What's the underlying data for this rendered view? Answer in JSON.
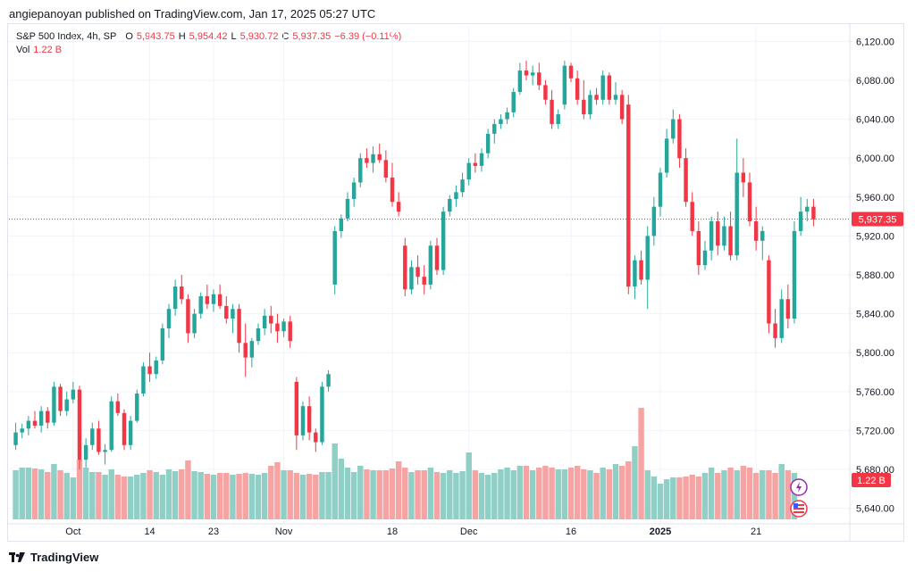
{
  "header": {
    "published_line": "angiepanoyan published on TradingView.com, Jan 17, 2025 05:27 UTC"
  },
  "legend": {
    "symbol": "S&P 500 Index, 4h, SP",
    "o_label": "O",
    "o_value": "5,943.75",
    "h_label": "H",
    "h_value": "5,954.42",
    "l_label": "L",
    "l_value": "5,930.72",
    "c_label": "C",
    "c_value": "5,937.35",
    "change": "−6.39 (−0.11%)",
    "vol_label": "Vol",
    "vol_value": "1.22 B"
  },
  "colors": {
    "up": "#26a69a",
    "down": "#f23645",
    "vol_up": "#8fcfc6",
    "vol_down": "#f5a3a3",
    "price_line": "#f23645",
    "grid": "#f0f3fa",
    "axis_text": "#131722"
  },
  "footer": {
    "brand": "TradingView"
  },
  "icons": [
    "tradingview-logo-icon",
    "lightning-event-icon",
    "us-flag-icon"
  ],
  "chart_data": {
    "type": "candlestick",
    "symbol": "S&P 500 Index",
    "interval": "4h",
    "ylim": [
      5625,
      6135
    ],
    "y_ticks": [
      "6,120.00",
      "6,080.00",
      "6,040.00",
      "6,000.00",
      "5,960.00",
      "5,920.00",
      "5,880.00",
      "5,840.00",
      "5,800.00",
      "5,760.00",
      "5,720.00",
      "5,680.00",
      "5,640.00"
    ],
    "y_tick_values": [
      6120,
      6080,
      6040,
      6000,
      5960,
      5920,
      5880,
      5840,
      5800,
      5760,
      5720,
      5680,
      5640
    ],
    "x_ticks": [
      {
        "label": "Oct",
        "index": 9,
        "bold": false
      },
      {
        "label": "14",
        "index": 21,
        "bold": false
      },
      {
        "label": "23",
        "index": 31,
        "bold": false
      },
      {
        "label": "Nov",
        "index": 42,
        "bold": false
      },
      {
        "label": "18",
        "index": 59,
        "bold": false
      },
      {
        "label": "Dec",
        "index": 71,
        "bold": false
      },
      {
        "label": "16",
        "index": 87,
        "bold": false
      },
      {
        "label": "2025",
        "index": 101,
        "bold": true
      },
      {
        "label": "21",
        "index": 116,
        "bold": false
      }
    ],
    "last_price": 5937.35,
    "last_price_label": "5,937.35",
    "last_volume_label": "1.22 B",
    "candles": [
      [
        5705,
        5728,
        5700,
        5718
      ],
      [
        5718,
        5727,
        5712,
        5722
      ],
      [
        5722,
        5735,
        5715,
        5730
      ],
      [
        5730,
        5740,
        5722,
        5725
      ],
      [
        5725,
        5745,
        5718,
        5740
      ],
      [
        5740,
        5744,
        5722,
        5728
      ],
      [
        5728,
        5770,
        5725,
        5765
      ],
      [
        5765,
        5768,
        5735,
        5740
      ],
      [
        5740,
        5760,
        5735,
        5752
      ],
      [
        5752,
        5770,
        5748,
        5762
      ],
      [
        5762,
        5766,
        5680,
        5690
      ],
      [
        5690,
        5712,
        5682,
        5705
      ],
      [
        5705,
        5728,
        5700,
        5722
      ],
      [
        5722,
        5730,
        5695,
        5698
      ],
      [
        5698,
        5706,
        5685,
        5700
      ],
      [
        5700,
        5755,
        5698,
        5750
      ],
      [
        5750,
        5758,
        5735,
        5738
      ],
      [
        5738,
        5742,
        5700,
        5705
      ],
      [
        5705,
        5735,
        5700,
        5730
      ],
      [
        5730,
        5762,
        5728,
        5758
      ],
      [
        5758,
        5790,
        5755,
        5786
      ],
      [
        5786,
        5800,
        5770,
        5778
      ],
      [
        5778,
        5796,
        5773,
        5792
      ],
      [
        5792,
        5830,
        5788,
        5825
      ],
      [
        5825,
        5850,
        5815,
        5845
      ],
      [
        5845,
        5875,
        5838,
        5868
      ],
      [
        5868,
        5880,
        5850,
        5855
      ],
      [
        5855,
        5860,
        5810,
        5820
      ],
      [
        5820,
        5845,
        5815,
        5840
      ],
      [
        5840,
        5862,
        5835,
        5858
      ],
      [
        5858,
        5870,
        5845,
        5850
      ],
      [
        5850,
        5865,
        5842,
        5860
      ],
      [
        5860,
        5870,
        5845,
        5848
      ],
      [
        5848,
        5858,
        5830,
        5835
      ],
      [
        5835,
        5850,
        5820,
        5845
      ],
      [
        5845,
        5850,
        5800,
        5810
      ],
      [
        5810,
        5830,
        5775,
        5795
      ],
      [
        5795,
        5815,
        5785,
        5812
      ],
      [
        5812,
        5830,
        5808,
        5825
      ],
      [
        5825,
        5845,
        5818,
        5838
      ],
      [
        5838,
        5848,
        5820,
        5830
      ],
      [
        5830,
        5840,
        5810,
        5822
      ],
      [
        5822,
        5835,
        5816,
        5832
      ],
      [
        5832,
        5838,
        5805,
        5812
      ],
      [
        5770,
        5775,
        5700,
        5715
      ],
      [
        5715,
        5750,
        5710,
        5745
      ],
      [
        5745,
        5755,
        5710,
        5718
      ],
      [
        5718,
        5722,
        5698,
        5708
      ],
      [
        5708,
        5770,
        5705,
        5765
      ],
      [
        5765,
        5782,
        5760,
        5778
      ],
      [
        5870,
        5930,
        5860,
        5925
      ],
      [
        5925,
        5942,
        5918,
        5938
      ],
      [
        5938,
        5965,
        5935,
        5958
      ],
      [
        5958,
        5980,
        5950,
        5975
      ],
      [
        5975,
        6005,
        5970,
        6000
      ],
      [
        6000,
        6010,
        5990,
        5995
      ],
      [
        5995,
        6012,
        5985,
        6004
      ],
      [
        6004,
        6015,
        5995,
        5998
      ],
      [
        5998,
        6008,
        5975,
        5980
      ],
      [
        5980,
        5995,
        5950,
        5955
      ],
      [
        5955,
        5965,
        5940,
        5945
      ],
      [
        5910,
        5918,
        5858,
        5865
      ],
      [
        5865,
        5895,
        5860,
        5888
      ],
      [
        5888,
        5900,
        5870,
        5878
      ],
      [
        5878,
        5890,
        5860,
        5870
      ],
      [
        5870,
        5915,
        5865,
        5910
      ],
      [
        5910,
        5918,
        5880,
        5885
      ],
      [
        5885,
        5950,
        5880,
        5945
      ],
      [
        5945,
        5962,
        5940,
        5958
      ],
      [
        5958,
        5972,
        5950,
        5965
      ],
      [
        5965,
        5985,
        5960,
        5978
      ],
      [
        5978,
        6000,
        5972,
        5995
      ],
      [
        5995,
        6005,
        5985,
        5992
      ],
      [
        5992,
        6010,
        5986,
        6005
      ],
      [
        6005,
        6030,
        6000,
        6025
      ],
      [
        6025,
        6040,
        6015,
        6035
      ],
      [
        6035,
        6045,
        6030,
        6040
      ],
      [
        6040,
        6052,
        6035,
        6047
      ],
      [
        6047,
        6072,
        6042,
        6068
      ],
      [
        6068,
        6098,
        6065,
        6090
      ],
      [
        6090,
        6100,
        6080,
        6085
      ],
      [
        6085,
        6095,
        6075,
        6088
      ],
      [
        6088,
        6098,
        6070,
        6075
      ],
      [
        6075,
        6080,
        6055,
        6060
      ],
      [
        6060,
        6070,
        6030,
        6035
      ],
      [
        6035,
        6050,
        6030,
        6045
      ],
      [
        6055,
        6100,
        6050,
        6095
      ],
      [
        6095,
        6098,
        6078,
        6082
      ],
      [
        6082,
        6090,
        6055,
        6060
      ],
      [
        6060,
        6080,
        6040,
        6045
      ],
      [
        6045,
        6070,
        6040,
        6065
      ],
      [
        6065,
        6072,
        6055,
        6060
      ],
      [
        6060,
        6090,
        6055,
        6085
      ],
      [
        6085,
        6088,
        6055,
        6060
      ],
      [
        6060,
        6078,
        6055,
        6065
      ],
      [
        6065,
        6070,
        6035,
        6040
      ]
    ],
    "candles_2": [
      [
        6055,
        6065,
        5860,
        5868
      ],
      [
        5868,
        5900,
        5855,
        5895
      ],
      [
        5895,
        5905,
        5870,
        5875
      ],
      [
        5875,
        5930,
        5845,
        5920
      ],
      [
        5920,
        5960,
        5910,
        5950
      ],
      [
        5950,
        5990,
        5940,
        5985
      ],
      [
        5985,
        6030,
        5980,
        6020
      ],
      [
        6020,
        6050,
        6015,
        6040
      ],
      [
        6040,
        6045,
        5990,
        6000
      ],
      [
        6000,
        6010,
        5950,
        5955
      ],
      [
        5955,
        5965,
        5920,
        5925
      ],
      [
        5925,
        5935,
        5880,
        5890
      ],
      [
        5890,
        5915,
        5885,
        5905
      ],
      [
        5905,
        5940,
        5895,
        5935
      ],
      [
        5935,
        5945,
        5900,
        5910
      ],
      [
        5910,
        5940,
        5905,
        5930
      ],
      [
        5930,
        5945,
        5895,
        5900
      ],
      [
        5900,
        6020,
        5895,
        5985
      ],
      [
        5985,
        6000,
        5960,
        5975
      ],
      [
        5975,
        5985,
        5930,
        5935
      ],
      [
        5935,
        5950,
        5905,
        5915
      ],
      [
        5915,
        5930,
        5895,
        5925
      ],
      [
        5895,
        5900,
        5820,
        5830
      ],
      [
        5830,
        5845,
        5805,
        5815
      ],
      [
        5815,
        5865,
        5810,
        5855
      ],
      [
        5855,
        5870,
        5825,
        5835
      ],
      [
        5835,
        5935,
        5830,
        5925
      ],
      [
        5925,
        5960,
        5920,
        5945
      ],
      [
        5945,
        5958,
        5935,
        5950
      ],
      [
        5950,
        5958,
        5930,
        5937
      ]
    ],
    "volume_note": "per-bar volume bars; last bar 1.22 B",
    "volumes": [
      55,
      58,
      58,
      57,
      56,
      53,
      62,
      55,
      52,
      47,
      67,
      58,
      53,
      53,
      50,
      56,
      50,
      48,
      48,
      50,
      52,
      55,
      53,
      50,
      56,
      54,
      56,
      66,
      54,
      53,
      51,
      50,
      52,
      52,
      50,
      51,
      52,
      51,
      50,
      52,
      60,
      64,
      55,
      55,
      52,
      50,
      51,
      50,
      53,
      53,
      85,
      68,
      58,
      53,
      60,
      56,
      55,
      55,
      55,
      57,
      65,
      58,
      53,
      55,
      55,
      58,
      53,
      52,
      55,
      52,
      54,
      75,
      55,
      52,
      50,
      52,
      56,
      58,
      55,
      60,
      60,
      55,
      58,
      60,
      58,
      56,
      56,
      58,
      60,
      56,
      55,
      52,
      58,
      56,
      62,
      60,
      65,
      82,
      125,
      55,
      48,
      40,
      45,
      47,
      47,
      48,
      50,
      48,
      52,
      58,
      52,
      55,
      58,
      55,
      60,
      58,
      52,
      55,
      55,
      52,
      62,
      55,
      52
    ]
  }
}
